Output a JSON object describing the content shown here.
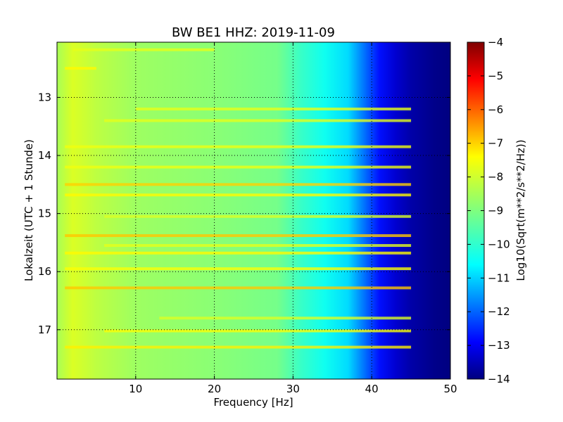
{
  "chart_data": {
    "type": "heatmap",
    "title": "BW BE1 HHZ: 2019-11-09",
    "xlabel": "Frequency [Hz]",
    "ylabel": "Lokalzeit (UTC + 1 Stunde)",
    "xlim": [
      0,
      50
    ],
    "ylim": [
      12.05,
      17.85
    ],
    "y_inverted": true,
    "x_ticks": [
      10,
      20,
      30,
      40,
      50
    ],
    "y_ticks": [
      13,
      14,
      15,
      16,
      17
    ],
    "grid": true,
    "colorbar": {
      "label": "Log10(Sqrt(m**2/s**2/Hz))",
      "range": [
        -14,
        -4
      ],
      "ticks": [
        -4,
        -5,
        -6,
        -7,
        -8,
        -9,
        -10,
        -11,
        -12,
        -13,
        -14
      ],
      "colormap": "jet"
    },
    "frequency_profile": {
      "freq_hz": [
        0,
        2,
        5,
        10,
        20,
        28,
        31,
        34,
        37,
        39,
        41,
        43,
        45,
        48,
        50
      ],
      "log10_amplitude": [
        -8.6,
        -8.1,
        -8.4,
        -8.7,
        -8.9,
        -9.1,
        -9.7,
        -10.1,
        -10.6,
        -11.6,
        -12.6,
        -13.2,
        -13.6,
        -13.9,
        -14.0
      ]
    },
    "bands": [
      {
        "time": 12.18,
        "from_hz": 2,
        "to_hz": 20,
        "log10_amplitude": -8.0
      },
      {
        "time": 12.5,
        "from_hz": 1,
        "to_hz": 5,
        "log10_amplitude": -7.7
      },
      {
        "time": 13.2,
        "from_hz": 10,
        "to_hz": 45,
        "log10_amplitude": -8.0
      },
      {
        "time": 13.4,
        "from_hz": 6,
        "to_hz": 45,
        "log10_amplitude": -8.0
      },
      {
        "time": 13.85,
        "from_hz": 1,
        "to_hz": 45,
        "log10_amplitude": -7.9
      },
      {
        "time": 14.2,
        "from_hz": 1,
        "to_hz": 45,
        "log10_amplitude": -7.9
      },
      {
        "time": 14.5,
        "from_hz": 1,
        "to_hz": 45,
        "log10_amplitude": -7.3
      },
      {
        "time": 14.68,
        "from_hz": 1,
        "to_hz": 45,
        "log10_amplitude": -7.7
      },
      {
        "time": 15.05,
        "from_hz": 6,
        "to_hz": 45,
        "log10_amplitude": -8.1
      },
      {
        "time": 15.38,
        "from_hz": 1,
        "to_hz": 45,
        "log10_amplitude": -7.2
      },
      {
        "time": 15.55,
        "from_hz": 6,
        "to_hz": 45,
        "log10_amplitude": -8.0
      },
      {
        "time": 15.68,
        "from_hz": 1,
        "to_hz": 45,
        "log10_amplitude": -7.7
      },
      {
        "time": 15.95,
        "from_hz": 1,
        "to_hz": 45,
        "log10_amplitude": -7.8
      },
      {
        "time": 16.28,
        "from_hz": 1,
        "to_hz": 45,
        "log10_amplitude": -7.2
      },
      {
        "time": 16.8,
        "from_hz": 13,
        "to_hz": 45,
        "log10_amplitude": -8.1
      },
      {
        "time": 17.02,
        "from_hz": 6,
        "to_hz": 45,
        "log10_amplitude": -7.8
      },
      {
        "time": 17.3,
        "from_hz": 1,
        "to_hz": 45,
        "log10_amplitude": -7.6
      }
    ]
  }
}
